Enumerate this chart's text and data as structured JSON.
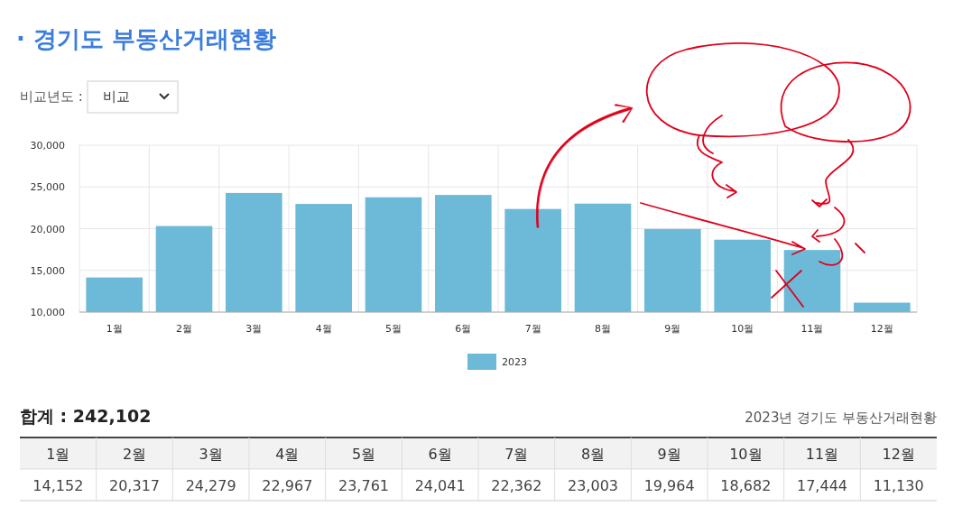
{
  "chart_data": {
    "type": "bar",
    "title": "· 경기도 부동산거래현황",
    "categories": [
      "1월",
      "2월",
      "3월",
      "4월",
      "5월",
      "6월",
      "7월",
      "8월",
      "9월",
      "10월",
      "11월",
      "12월"
    ],
    "series": [
      {
        "name": "2023",
        "color": "#6dbad8",
        "values": [
          14152,
          20317,
          24279,
          22967,
          23761,
          24041,
          22362,
          23003,
          19964,
          18682,
          17444,
          11130
        ]
      }
    ],
    "ylim": [
      10000,
      30000
    ],
    "yticks": [
      {
        "value": 10000,
        "label": "10,000"
      },
      {
        "value": 15000,
        "label": "15,000"
      },
      {
        "value": 20000,
        "label": "20,000"
      },
      {
        "value": 25000,
        "label": "25,000"
      },
      {
        "value": 30000,
        "label": "30,000"
      }
    ],
    "grid": true,
    "legend": "bottom",
    "value_labels": [
      "14,152",
      "20,317",
      "24,279",
      "22,967",
      "23,761",
      "24,041",
      "22,362",
      "23,003",
      "19,964",
      "18,682",
      "17,444",
      "11,130"
    ],
    "annotations": [
      "비교년도 :",
      "비교",
      "합계 : 242,102",
      "2023년 경기도 부동산거래현황"
    ]
  }
}
